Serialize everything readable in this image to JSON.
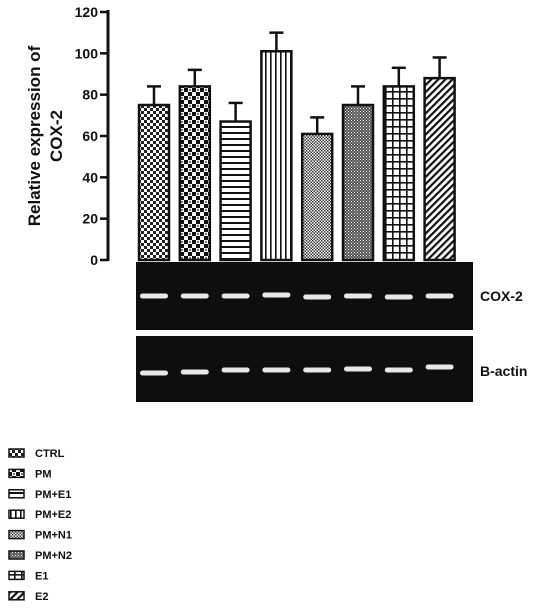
{
  "chart_data": {
    "type": "bar",
    "ylabel": "Relative expression of COX-2",
    "ylabel_lines": [
      "Relative expression of",
      "COX-2"
    ],
    "ylim": [
      0,
      120
    ],
    "yticks": [
      0,
      20,
      40,
      60,
      80,
      100,
      120
    ],
    "grid": false,
    "legend_position": "bottom-left",
    "series": [
      {
        "name": "CTRL",
        "value": 75,
        "error": 9,
        "pattern": "dense-check"
      },
      {
        "name": "PM",
        "value": 84,
        "error": 8,
        "pattern": "coarse-check"
      },
      {
        "name": "PM+E1",
        "value": 67,
        "error": 9,
        "pattern": "horizontal-lines"
      },
      {
        "name": "PM+E2",
        "value": 101,
        "error": 9,
        "pattern": "vertical-lines"
      },
      {
        "name": "PM+N1",
        "value": 61,
        "error": 8,
        "pattern": "fine-stipple"
      },
      {
        "name": "PM+N2",
        "value": 75,
        "error": 9,
        "pattern": "dense-stipple"
      },
      {
        "name": "E1",
        "value": 84,
        "error": 9,
        "pattern": "grid"
      },
      {
        "name": "E2",
        "value": 88,
        "error": 10,
        "pattern": "diagonal"
      }
    ],
    "blots": [
      {
        "label": "COX-2"
      },
      {
        "label": "Β-actin"
      }
    ]
  }
}
